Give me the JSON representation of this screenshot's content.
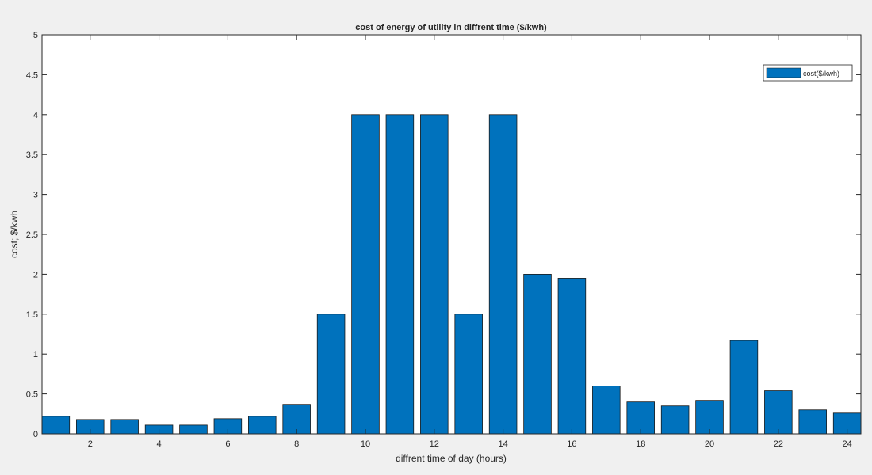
{
  "chart_data": {
    "type": "bar",
    "title": "cost of energy of utility in diffrent time ($/kwh)",
    "xlabel": "diffrent time of day (hours)",
    "ylabel": "cost; $/kwh",
    "x": [
      1,
      2,
      3,
      4,
      5,
      6,
      7,
      8,
      9,
      10,
      11,
      12,
      13,
      14,
      15,
      16,
      17,
      18,
      19,
      20,
      21,
      22,
      23,
      24
    ],
    "values": [
      0.22,
      0.18,
      0.18,
      0.11,
      0.11,
      0.19,
      0.22,
      0.37,
      1.5,
      4,
      4,
      4,
      1.5,
      4,
      2,
      1.95,
      0.6,
      0.4,
      0.35,
      0.42,
      1.17,
      0.54,
      0.3,
      0.26
    ],
    "xlim": [
      1,
      24
    ],
    "ylim": [
      0,
      5
    ],
    "xticks": [
      2,
      4,
      6,
      8,
      10,
      12,
      14,
      16,
      18,
      20,
      22,
      24
    ],
    "yticks": [
      0,
      0.5,
      1,
      1.5,
      2,
      2.5,
      3,
      3.5,
      4,
      4.5,
      5
    ],
    "ytick_labels": [
      "0",
      "0.5",
      "1",
      "1.5",
      "2",
      "2.5",
      "3",
      "3.5",
      "4",
      "4.5",
      "5"
    ],
    "legend": {
      "labels": [
        "cost($/kwh)"
      ],
      "placement": "top-right"
    },
    "grid": false,
    "colors": {
      "bar": "#0072bd",
      "bar_edge": "#1a1a1a",
      "axes_bg": "#ffffff",
      "figure_bg": "#f0f0f0"
    }
  }
}
